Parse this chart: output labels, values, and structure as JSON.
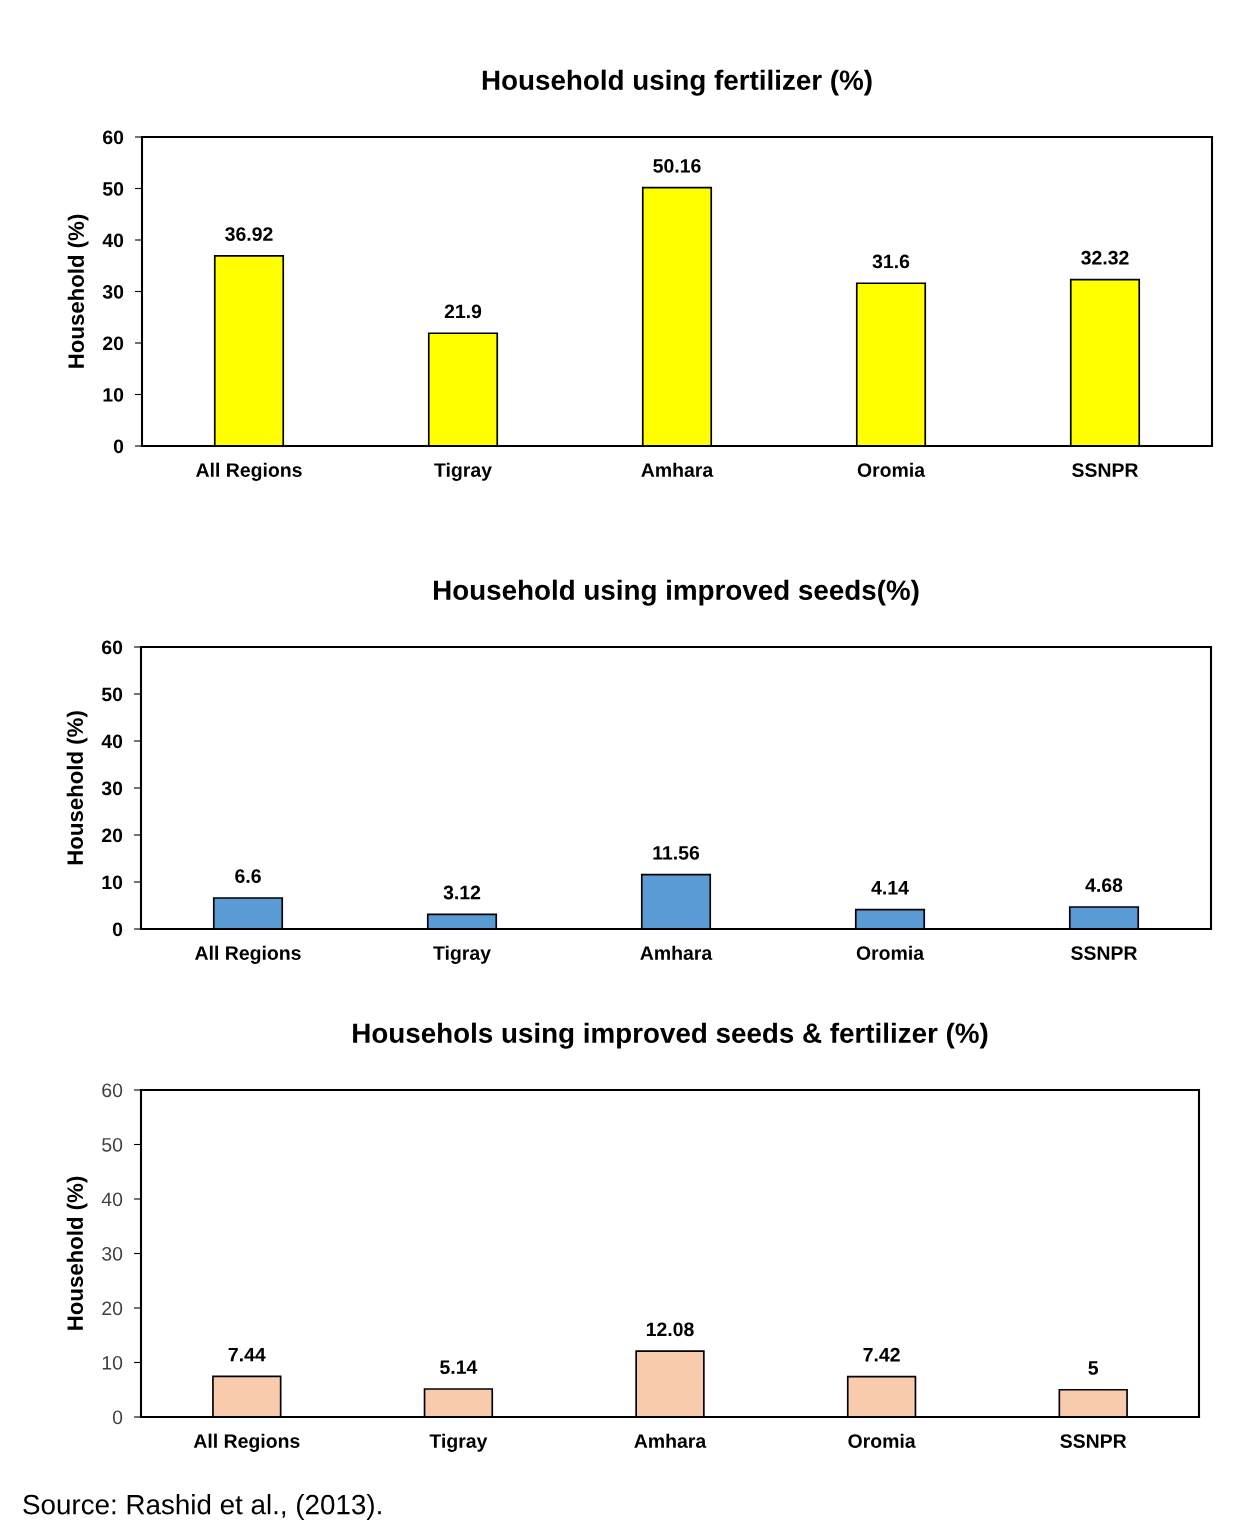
{
  "chart_data": [
    {
      "type": "bar",
      "title": "Household using fertilizer (%)",
      "ylabel": "Household (%)",
      "categories": [
        "All Regions",
        "Tigray",
        "Amhara",
        "Oromia",
        "SSNPR"
      ],
      "values": [
        36.92,
        21.9,
        50.16,
        31.6,
        32.32
      ],
      "color": "#ffff00",
      "ylim": [
        0,
        60
      ],
      "yticks": [
        0,
        10,
        20,
        30,
        40,
        50,
        60
      ],
      "data_labels": true,
      "grid": false,
      "legend": false
    },
    {
      "type": "bar",
      "title": "Household using improved seeds(%)",
      "ylabel": "Household (%)",
      "categories": [
        "All Regions",
        "Tigray",
        "Amhara",
        "Oromia",
        "SSNPR"
      ],
      "values": [
        6.6,
        3.12,
        11.56,
        4.14,
        4.68
      ],
      "color": "#5b9bd5",
      "ylim": [
        0,
        60
      ],
      "yticks": [
        0,
        10,
        20,
        30,
        40,
        50,
        60
      ],
      "data_labels": true,
      "grid": false,
      "legend": false
    },
    {
      "type": "bar",
      "title": "Househols using improved seeds & fertilizer (%)",
      "ylabel": "Household (%)",
      "categories": [
        "All Regions",
        "Tigray",
        "Amhara",
        "Oromia",
        "SSNPR"
      ],
      "values": [
        7.44,
        5.14,
        12.08,
        7.42,
        5
      ],
      "color": "#f8cbad",
      "ylim": [
        0,
        60
      ],
      "yticks": [
        0,
        10,
        20,
        30,
        40,
        50,
        60
      ],
      "data_labels": true,
      "grid": false,
      "legend": false,
      "annotations": [
        "Source: Rashid et al., (2013)."
      ]
    }
  ]
}
